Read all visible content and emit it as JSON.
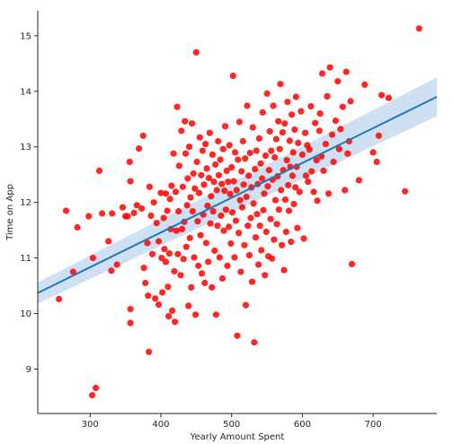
{
  "chart_data": {
    "type": "scatter",
    "title": "",
    "xlabel": "Yearly Amount Spent",
    "ylabel": "Time on App",
    "xlim": [
      226,
      790
    ],
    "ylim": [
      8.2,
      15.45
    ],
    "x_ticks": [
      300,
      400,
      500,
      600,
      700
    ],
    "y_ticks": [
      9,
      10,
      11,
      12,
      13,
      14,
      15
    ],
    "grid": false,
    "colors": {
      "points": "#ff0000",
      "regression_line": "#1f77b4",
      "confidence_band": "#c6dbef",
      "axis": "#262626"
    },
    "regression": {
      "x": [
        226,
        790
      ],
      "y": [
        10.37,
        13.9
      ],
      "ci_lower": [
        10.18,
        13.55
      ],
      "ci_upper": [
        10.56,
        14.25
      ]
    },
    "series": [
      {
        "points": [
          [
            256,
            10.26
          ],
          [
            266,
            11.85
          ],
          [
            276,
            10.75
          ],
          [
            282,
            11.55
          ],
          [
            298,
            11.75
          ],
          [
            303,
            8.53
          ],
          [
            304,
            11.0
          ],
          [
            308,
            8.66
          ],
          [
            313,
            12.57
          ],
          [
            317,
            11.8
          ],
          [
            326,
            11.3
          ],
          [
            331,
            11.8
          ],
          [
            330,
            10.77
          ],
          [
            338,
            10.88
          ],
          [
            346,
            11.91
          ],
          [
            350,
            11.75
          ],
          [
            353,
            11.75
          ],
          [
            356,
            12.73
          ],
          [
            357,
            10.08
          ],
          [
            357,
            9.83
          ],
          [
            357,
            12.38
          ],
          [
            362,
            11.81
          ],
          [
            366,
            11.95
          ],
          [
            369,
            12.97
          ],
          [
            373,
            11.89
          ],
          [
            375,
            13.2
          ],
          [
            376,
            10.82
          ],
          [
            378,
            10.55
          ],
          [
            381,
            11.27
          ],
          [
            382,
            10.32
          ],
          [
            383,
            9.31
          ],
          [
            384,
            12.28
          ],
          [
            386,
            11.76
          ],
          [
            388,
            11.07
          ],
          [
            390,
            12.0
          ],
          [
            392,
            10.27
          ],
          [
            394,
            11.63
          ],
          [
            397,
            10.16
          ],
          [
            397,
            11.3
          ],
          [
            400,
            12.17
          ],
          [
            401,
            11.0
          ],
          [
            402,
            10.38
          ],
          [
            404,
            11.72
          ],
          [
            405,
            11.16
          ],
          [
            407,
            12.16
          ],
          [
            407,
            10.93
          ],
          [
            409,
            11.85
          ],
          [
            410,
            10.48
          ],
          [
            411,
            9.95
          ],
          [
            412,
            11.08
          ],
          [
            413,
            12.06
          ],
          [
            414,
            11.52
          ],
          [
            415,
            12.3
          ],
          [
            416,
            10.05
          ],
          [
            418,
            12.88
          ],
          [
            419,
            10.76
          ],
          [
            420,
            9.85
          ],
          [
            421,
            12.19
          ],
          [
            422,
            11.49
          ],
          [
            423,
            13.72
          ],
          [
            424,
            11.07
          ],
          [
            425,
            11.84
          ],
          [
            426,
            12.66
          ],
          [
            428,
            10.69
          ],
          [
            429,
            13.29
          ],
          [
            430,
            11.52
          ],
          [
            431,
            12.28
          ],
          [
            432,
            10.98
          ],
          [
            433,
            11.65
          ],
          [
            434,
            13.46
          ],
          [
            435,
            12.88
          ],
          [
            436,
            11.2
          ],
          [
            437,
            11.95
          ],
          [
            438,
            12.43
          ],
          [
            439,
            10.14
          ],
          [
            440,
            13.0
          ],
          [
            441,
            11.36
          ],
          [
            442,
            12.09
          ],
          [
            443,
            10.47
          ],
          [
            444,
            13.42
          ],
          [
            445,
            11.84
          ],
          [
            446,
            12.52
          ],
          [
            447,
            11.01
          ],
          [
            448,
            12.25
          ],
          [
            449,
            9.98
          ],
          [
            450,
            14.7
          ],
          [
            451,
            12.73
          ],
          [
            452,
            11.66
          ],
          [
            453,
            10.86
          ],
          [
            454,
            12.17
          ],
          [
            455,
            13.17
          ],
          [
            456,
            11.41
          ],
          [
            457,
            12.49
          ],
          [
            458,
            10.72
          ],
          [
            459,
            12.93
          ],
          [
            460,
            11.78
          ],
          [
            461,
            12.32
          ],
          [
            462,
            10.55
          ],
          [
            463,
            13.05
          ],
          [
            464,
            11.27
          ],
          [
            465,
            12.61
          ],
          [
            466,
            11.94
          ],
          [
            467,
            10.93
          ],
          [
            468,
            12.44
          ],
          [
            469,
            13.25
          ],
          [
            470,
            11.62
          ],
          [
            471,
            12.11
          ],
          [
            472,
            10.47
          ],
          [
            473,
            12.86
          ],
          [
            474,
            11.84
          ],
          [
            475,
            12.37
          ],
          [
            476,
            11.13
          ],
          [
            477,
            12.68
          ],
          [
            478,
            9.98
          ],
          [
            479,
            12.22
          ],
          [
            480,
            11.58
          ],
          [
            481,
            13.1
          ],
          [
            482,
            12.49
          ],
          [
            483,
            11.01
          ],
          [
            484,
            12.77
          ],
          [
            485,
            11.76
          ],
          [
            486,
            12.33
          ],
          [
            487,
            10.63
          ],
          [
            488,
            12.96
          ],
          [
            489,
            11.49
          ],
          [
            490,
            12.21
          ],
          [
            491,
            13.37
          ],
          [
            492,
            11.87
          ],
          [
            493,
            12.57
          ],
          [
            494,
            10.86
          ],
          [
            495,
            12.37
          ],
          [
            496,
            11.56
          ],
          [
            497,
            13.03
          ],
          [
            498,
            12.15
          ],
          [
            499,
            11.26
          ],
          [
            500,
            12.63
          ],
          [
            501,
            11.82
          ],
          [
            502,
            14.28
          ],
          [
            503,
            12.38
          ],
          [
            504,
            11.01
          ],
          [
            505,
            12.9
          ],
          [
            506,
            11.67
          ],
          [
            507,
            12.22
          ],
          [
            508,
            9.6
          ],
          [
            509,
            12.77
          ],
          [
            510,
            11.45
          ],
          [
            511,
            13.45
          ],
          [
            512,
            12.04
          ],
          [
            513,
            10.75
          ],
          [
            514,
            12.56
          ],
          [
            515,
            11.91
          ],
          [
            516,
            13.1
          ],
          [
            517,
            12.32
          ],
          [
            518,
            11.23
          ],
          [
            519,
            12.79
          ],
          [
            520,
            10.15
          ],
          [
            521,
            12.1
          ],
          [
            522,
            13.74
          ],
          [
            523,
            11.58
          ],
          [
            524,
            12.48
          ],
          [
            525,
            11.05
          ],
          [
            526,
            12.89
          ],
          [
            527,
            11.72
          ],
          [
            528,
            12.27
          ],
          [
            529,
            10.57
          ],
          [
            530,
            13.35
          ],
          [
            531,
            11.98
          ],
          [
            532,
            9.48
          ],
          [
            533,
            12.6
          ],
          [
            534,
            11.37
          ],
          [
            535,
            12.93
          ],
          [
            536,
            11.79
          ],
          [
            537,
            12.33
          ],
          [
            538,
            10.88
          ],
          [
            539,
            13.15
          ],
          [
            540,
            11.58
          ],
          [
            541,
            12.7
          ],
          [
            542,
            11.14
          ],
          [
            543,
            12.43
          ],
          [
            544,
            13.62
          ],
          [
            545,
            11.86
          ],
          [
            546,
            12.16
          ],
          [
            547,
            10.69
          ],
          [
            548,
            12.84
          ],
          [
            549,
            11.47
          ],
          [
            550,
            13.96
          ],
          [
            551,
            12.29
          ],
          [
            552,
            11.03
          ],
          [
            553,
            12.58
          ],
          [
            554,
            13.28
          ],
          [
            555,
            11.7
          ],
          [
            556,
            12.93
          ],
          [
            557,
            10.99
          ],
          [
            558,
            12.41
          ],
          [
            559,
            13.74
          ],
          [
            560,
            11.33
          ],
          [
            561,
            12.81
          ],
          [
            562,
            12.04
          ],
          [
            563,
            13.14
          ],
          [
            564,
            11.61
          ],
          [
            565,
            12.47
          ],
          [
            566,
            13.46
          ],
          [
            567,
            11.87
          ],
          [
            568,
            12.96
          ],
          [
            569,
            14.13
          ],
          [
            570,
            12.22
          ],
          [
            571,
            11.23
          ],
          [
            572,
            13.26
          ],
          [
            573,
            12.58
          ],
          [
            574,
            10.78
          ],
          [
            575,
            13.42
          ],
          [
            576,
            12.05
          ],
          [
            577,
            11.47
          ],
          [
            578,
            12.76
          ],
          [
            579,
            13.81
          ],
          [
            580,
            12.31
          ],
          [
            581,
            11.85
          ],
          [
            582,
            13.11
          ],
          [
            583,
            12.64
          ],
          [
            584,
            11.29
          ],
          [
            585,
            13.58
          ],
          [
            586,
            12.48
          ],
          [
            587,
            12.9
          ],
          [
            588,
            11.97
          ],
          [
            589,
            13.31
          ],
          [
            590,
            12.27
          ],
          [
            591,
            13.9
          ],
          [
            592,
            12.64
          ],
          [
            593,
            11.54
          ],
          [
            594,
            13.07
          ],
          [
            596,
            12.19
          ],
          [
            598,
            13.64
          ],
          [
            600,
            12.86
          ],
          [
            602,
            11.35
          ],
          [
            604,
            13.25
          ],
          [
            605,
            12.48
          ],
          [
            607,
            13.03
          ],
          [
            608,
            12.37
          ],
          [
            610,
            12.95
          ],
          [
            612,
            13.73
          ],
          [
            613,
            12.56
          ],
          [
            616,
            12.19
          ],
          [
            618,
            13.43
          ],
          [
            620,
            12.76
          ],
          [
            621,
            12.03
          ],
          [
            624,
            13.29
          ],
          [
            625,
            13.6
          ],
          [
            627,
            12.83
          ],
          [
            628,
            14.32
          ],
          [
            630,
            12.57
          ],
          [
            633,
            13.05
          ],
          [
            635,
            13.91
          ],
          [
            637,
            12.16
          ],
          [
            639,
            14.43
          ],
          [
            642,
            13.22
          ],
          [
            644,
            12.73
          ],
          [
            647,
            13.47
          ],
          [
            650,
            14.18
          ],
          [
            652,
            12.96
          ],
          [
            654,
            13.32
          ],
          [
            657,
            13.72
          ],
          [
            660,
            12.22
          ],
          [
            662,
            14.35
          ],
          [
            664,
            12.88
          ],
          [
            666,
            13.1
          ],
          [
            668,
            13.82
          ],
          [
            670,
            10.89
          ],
          [
            680,
            12.4
          ],
          [
            688,
            14.12
          ],
          [
            700,
            12.9
          ],
          [
            705,
            12.73
          ],
          [
            708,
            13.2
          ],
          [
            712,
            13.93
          ],
          [
            722,
            13.88
          ],
          [
            745,
            12.2
          ],
          [
            765,
            15.13
          ]
        ]
      }
    ]
  }
}
